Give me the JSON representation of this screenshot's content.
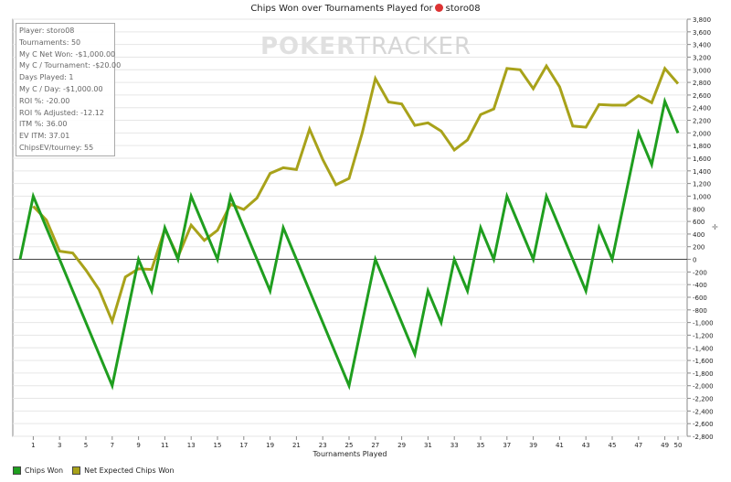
{
  "title": {
    "text": "Chips Won over Tournaments Played for",
    "player": "storo08"
  },
  "stats": [
    "Player: storo08",
    "Tournaments: 50",
    "My C Net Won: -$1,000.00",
    "My C / Tournament: -$20.00",
    "Days Played: 1",
    "My C / Day: -$1,000.00",
    "ROI %: -20.00",
    "ROI % Adjusted: -12.12",
    "ITM %: 36.00",
    "EV ITM: 37.01",
    "ChipsEV/tourney: 55"
  ],
  "watermark": {
    "a": "POKER",
    "b": "TRACKER"
  },
  "colors": {
    "chips_won": "#1f9e1f",
    "expected": "#a8a21a",
    "zero_line": "#444444",
    "grid": "#e6e6e6"
  },
  "chart_data": {
    "type": "line",
    "title": "Chips Won over Tournaments Played for storo08",
    "xlabel": "Tournaments Played",
    "ylabel": "",
    "xlim": [
      0,
      50
    ],
    "ylim": [
      -2800,
      3800
    ],
    "x_ticks": [
      1,
      3,
      5,
      7,
      9,
      11,
      13,
      15,
      17,
      19,
      21,
      23,
      25,
      27,
      29,
      31,
      33,
      35,
      37,
      39,
      41,
      43,
      45,
      47,
      49,
      50
    ],
    "y_ticks": [
      3800,
      3600,
      3400,
      3200,
      3000,
      2800,
      2600,
      2400,
      2200,
      2000,
      1800,
      1600,
      1400,
      1200,
      1000,
      800,
      600,
      400,
      200,
      0,
      -200,
      -400,
      -600,
      -800,
      -1000,
      -1200,
      -1400,
      -1600,
      -1800,
      -2000,
      -2200,
      -2400,
      -2600,
      -2800
    ],
    "y_tick_labels": [
      "3,800",
      "3,600",
      "3,400",
      "3,200",
      "3,000",
      "2,800",
      "2,600",
      "2,400",
      "2,200",
      "2,000",
      "1,800",
      "1,600",
      "1,400",
      "1,200",
      "1,000",
      "800",
      "600",
      "400",
      "200",
      "0",
      "-200",
      "-400",
      "-600",
      "-800",
      "-1,000",
      "-1,200",
      "-1,400",
      "-1,600",
      "-1,800",
      "-2,000",
      "-2,200",
      "-2,400",
      "-2,600",
      "-2,800"
    ],
    "series": [
      {
        "name": "Chips Won",
        "x": [
          0,
          1,
          2,
          3,
          4,
          5,
          6,
          7,
          8,
          9,
          10,
          11,
          12,
          13,
          14,
          15,
          16,
          17,
          18,
          19,
          20,
          21,
          22,
          23,
          24,
          25,
          26,
          27,
          28,
          29,
          30,
          31,
          32,
          33,
          34,
          35,
          36,
          37,
          38,
          39,
          40,
          41,
          42,
          43,
          44,
          45,
          46,
          47,
          48,
          49,
          50
        ],
        "values": [
          0,
          1000,
          500,
          0,
          -500,
          -1000,
          -1500,
          -2000,
          -1000,
          0,
          -500,
          500,
          0,
          1000,
          500,
          0,
          1000,
          500,
          0,
          -500,
          500,
          0,
          -500,
          -1000,
          -1500,
          -2000,
          -1000,
          0,
          -500,
          -1000,
          -1500,
          -500,
          -1000,
          0,
          -500,
          500,
          0,
          1000,
          500,
          0,
          1000,
          500,
          0,
          -500,
          500,
          0,
          1000,
          2000,
          1500,
          2500,
          2000
        ]
      },
      {
        "name": "Net Expected Chips Won",
        "x": [
          1,
          2,
          3,
          4,
          5,
          6,
          7,
          8,
          9,
          10,
          11,
          12,
          13,
          14,
          15,
          16,
          17,
          18,
          19,
          20,
          21,
          22,
          23,
          24,
          25,
          26,
          27,
          28,
          29,
          30,
          31,
          32,
          33,
          34,
          35,
          36,
          37,
          38,
          39,
          40,
          41,
          42,
          43,
          44,
          45,
          46,
          47,
          48,
          49,
          50
        ],
        "values": [
          840,
          620,
          130,
          100,
          -170,
          -480,
          -980,
          -280,
          -150,
          -160,
          480,
          40,
          540,
          300,
          460,
          870,
          790,
          970,
          1360,
          1450,
          1420,
          2060,
          1580,
          1180,
          1280,
          2000,
          2860,
          2490,
          2460,
          2120,
          2160,
          2030,
          1730,
          1890,
          2290,
          2380,
          3020,
          3000,
          2700,
          3060,
          2730,
          2110,
          2090,
          2450,
          2440,
          2440,
          2590,
          2480,
          3020,
          2780
        ]
      }
    ]
  },
  "legend": [
    {
      "label": "Chips Won",
      "color": "#1f9e1f"
    },
    {
      "label": "Net Expected Chips Won",
      "color": "#a8a21a"
    }
  ]
}
